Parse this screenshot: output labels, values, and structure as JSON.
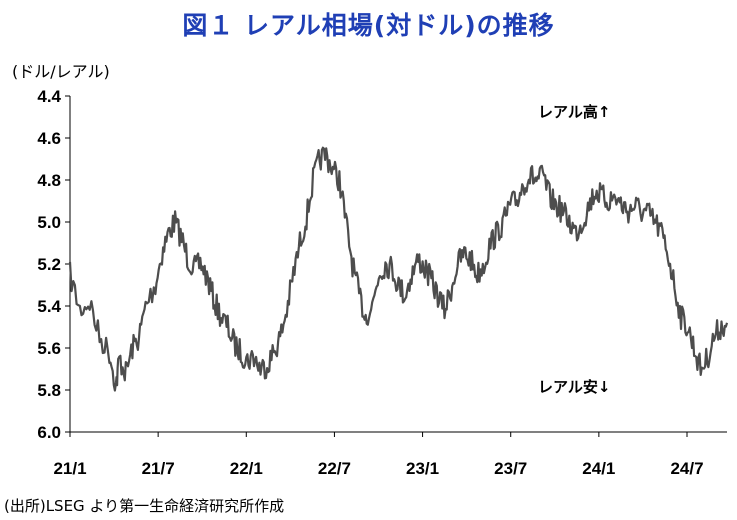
{
  "title": "図１ レアル相場(対ドル)の推移",
  "unit_label": "(ドル/レアル)",
  "source": "(出所)LSEG より第一生命経済研究所作成",
  "chart_data": {
    "type": "line",
    "y_inverted": true,
    "ylim": [
      4.4,
      6.0
    ],
    "y_ticks": [
      "4.4",
      "4.6",
      "4.8",
      "5.0",
      "5.2",
      "5.4",
      "5.6",
      "5.8",
      "6.0"
    ],
    "x_tick_labels": [
      "21/1",
      "21/7",
      "22/1",
      "22/7",
      "23/1",
      "23/7",
      "24/1",
      "24/7"
    ],
    "annotations": {
      "top": "レアル高↑",
      "bottom": "レアル安↓"
    },
    "line_color": "#4d4d4d",
    "points": [
      [
        0,
        5.25
      ],
      [
        0.3,
        5.42
      ],
      [
        0.6,
        5.38
      ],
      [
        0.9,
        5.55
      ],
      [
        1.2,
        5.62
      ],
      [
        1.4,
        5.78
      ],
      [
        1.5,
        5.65
      ],
      [
        1.7,
        5.72
      ],
      [
        1.9,
        5.6
      ],
      [
        2.1,
        5.55
      ],
      [
        2.3,
        5.4
      ],
      [
        2.6,
        5.3
      ],
      [
        2.8,
        5.15
      ],
      [
        3.0,
        5.05
      ],
      [
        3.2,
        5.0
      ],
      [
        3.4,
        5.08
      ],
      [
        3.6,
        5.18
      ],
      [
        3.8,
        5.22
      ],
      [
        4.0,
        5.2
      ],
      [
        4.2,
        5.28
      ],
      [
        4.4,
        5.38
      ],
      [
        4.6,
        5.45
      ],
      [
        4.8,
        5.5
      ],
      [
        5.0,
        5.58
      ],
      [
        5.2,
        5.62
      ],
      [
        5.4,
        5.66
      ],
      [
        5.6,
        5.64
      ],
      [
        5.8,
        5.7
      ],
      [
        6.0,
        5.68
      ],
      [
        6.2,
        5.62
      ],
      [
        6.4,
        5.55
      ],
      [
        6.6,
        5.42
      ],
      [
        6.8,
        5.25
      ],
      [
        7.0,
        5.1
      ],
      [
        7.2,
        4.98
      ],
      [
        7.4,
        4.8
      ],
      [
        7.6,
        4.7
      ],
      [
        7.8,
        4.68
      ],
      [
        8.0,
        4.75
      ],
      [
        8.2,
        4.8
      ],
      [
        8.4,
        5.0
      ],
      [
        8.6,
        5.2
      ],
      [
        8.8,
        5.35
      ],
      [
        9.0,
        5.45
      ],
      [
        9.2,
        5.4
      ],
      [
        9.4,
        5.25
      ],
      [
        9.6,
        5.2
      ],
      [
        9.8,
        5.22
      ],
      [
        10.0,
        5.3
      ],
      [
        10.2,
        5.35
      ],
      [
        10.4,
        5.25
      ],
      [
        10.6,
        5.18
      ],
      [
        10.8,
        5.22
      ],
      [
        11.0,
        5.28
      ],
      [
        11.2,
        5.35
      ],
      [
        11.4,
        5.42
      ],
      [
        11.6,
        5.32
      ],
      [
        11.8,
        5.2
      ],
      [
        12.0,
        5.15
      ],
      [
        12.2,
        5.18
      ],
      [
        12.4,
        5.25
      ],
      [
        12.6,
        5.2
      ],
      [
        12.8,
        5.1
      ],
      [
        13.0,
        5.05
      ],
      [
        13.2,
        5.0
      ],
      [
        13.4,
        4.92
      ],
      [
        13.6,
        4.9
      ],
      [
        13.8,
        4.82
      ],
      [
        14.0,
        4.78
      ],
      [
        14.2,
        4.8
      ],
      [
        14.4,
        4.78
      ],
      [
        14.6,
        4.88
      ],
      [
        14.8,
        4.92
      ],
      [
        15.0,
        4.95
      ],
      [
        15.2,
        5.0
      ],
      [
        15.4,
        5.05
      ],
      [
        15.6,
        5.0
      ],
      [
        15.8,
        4.92
      ],
      [
        16.0,
        4.85
      ],
      [
        16.2,
        4.88
      ],
      [
        16.4,
        4.9
      ],
      [
        16.6,
        4.88
      ],
      [
        16.8,
        4.92
      ],
      [
        17.0,
        4.95
      ],
      [
        17.2,
        4.92
      ],
      [
        17.4,
        4.95
      ],
      [
        17.6,
        4.96
      ],
      [
        17.8,
        5.0
      ],
      [
        18.0,
        5.05
      ],
      [
        18.2,
        5.15
      ],
      [
        18.4,
        5.3
      ],
      [
        18.6,
        5.45
      ],
      [
        18.8,
        5.5
      ],
      [
        19.0,
        5.6
      ],
      [
        19.2,
        5.7
      ],
      [
        19.4,
        5.65
      ],
      [
        19.6,
        5.55
      ],
      [
        19.8,
        5.5
      ],
      [
        20.0,
        5.48
      ]
    ]
  }
}
